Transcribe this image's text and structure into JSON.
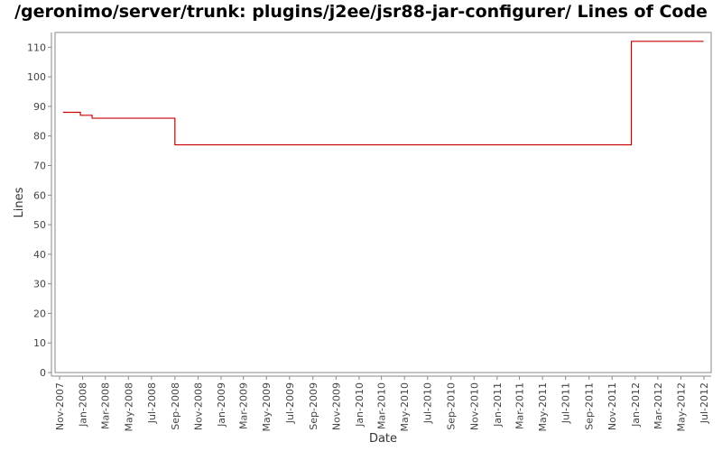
{
  "chart_data": {
    "type": "line",
    "title": "/geronimo/server/trunk: plugins/j2ee/jsr88-jar-configurer/ Lines of Code",
    "xlabel": "Date",
    "ylabel": "Lines",
    "ylim": [
      0,
      115
    ],
    "xlim": [
      "2007-10-20",
      "2012-07-20"
    ],
    "yticks": [
      0,
      10,
      20,
      30,
      40,
      50,
      60,
      70,
      80,
      90,
      100,
      110
    ],
    "xticks": [
      {
        "date": "2007-11-01",
        "label": "Nov-2007"
      },
      {
        "date": "2008-01-01",
        "label": "Jan-2008"
      },
      {
        "date": "2008-03-01",
        "label": "Mar-2008"
      },
      {
        "date": "2008-05-01",
        "label": "May-2008"
      },
      {
        "date": "2008-07-01",
        "label": "Jul-2008"
      },
      {
        "date": "2008-09-01",
        "label": "Sep-2008"
      },
      {
        "date": "2008-11-01",
        "label": "Nov-2008"
      },
      {
        "date": "2009-01-01",
        "label": "Jan-2009"
      },
      {
        "date": "2009-03-01",
        "label": "Mar-2009"
      },
      {
        "date": "2009-05-01",
        "label": "May-2009"
      },
      {
        "date": "2009-07-01",
        "label": "Jul-2009"
      },
      {
        "date": "2009-09-01",
        "label": "Sep-2009"
      },
      {
        "date": "2009-11-01",
        "label": "Nov-2009"
      },
      {
        "date": "2010-01-01",
        "label": "Jan-2010"
      },
      {
        "date": "2010-03-01",
        "label": "Mar-2010"
      },
      {
        "date": "2010-05-01",
        "label": "May-2010"
      },
      {
        "date": "2010-07-01",
        "label": "Jul-2010"
      },
      {
        "date": "2010-09-01",
        "label": "Sep-2010"
      },
      {
        "date": "2010-11-01",
        "label": "Nov-2010"
      },
      {
        "date": "2011-01-01",
        "label": "Jan-2011"
      },
      {
        "date": "2011-03-01",
        "label": "Mar-2011"
      },
      {
        "date": "2011-05-01",
        "label": "May-2011"
      },
      {
        "date": "2011-07-01",
        "label": "Jul-2011"
      },
      {
        "date": "2011-09-01",
        "label": "Sep-2011"
      },
      {
        "date": "2011-11-01",
        "label": "Nov-2011"
      },
      {
        "date": "2012-01-01",
        "label": "Jan-2012"
      },
      {
        "date": "2012-03-01",
        "label": "Mar-2012"
      },
      {
        "date": "2012-05-01",
        "label": "May-2012"
      },
      {
        "date": "2012-07-01",
        "label": "Jul-2012"
      }
    ],
    "series": [
      {
        "color": "#cc0000",
        "step": true,
        "points": [
          {
            "x": "2007-11-10",
            "y": 88
          },
          {
            "x": "2007-12-26",
            "y": 87
          },
          {
            "x": "2008-01-26",
            "y": 86
          },
          {
            "x": "2008-09-01",
            "y": 77
          },
          {
            "x": "2011-12-22",
            "y": 112
          },
          {
            "x": "2012-06-30",
            "y": 112
          }
        ]
      }
    ],
    "grid": false,
    "colors": {
      "line": "#cc0000",
      "axis": "#888888",
      "frame": "#888888"
    }
  }
}
